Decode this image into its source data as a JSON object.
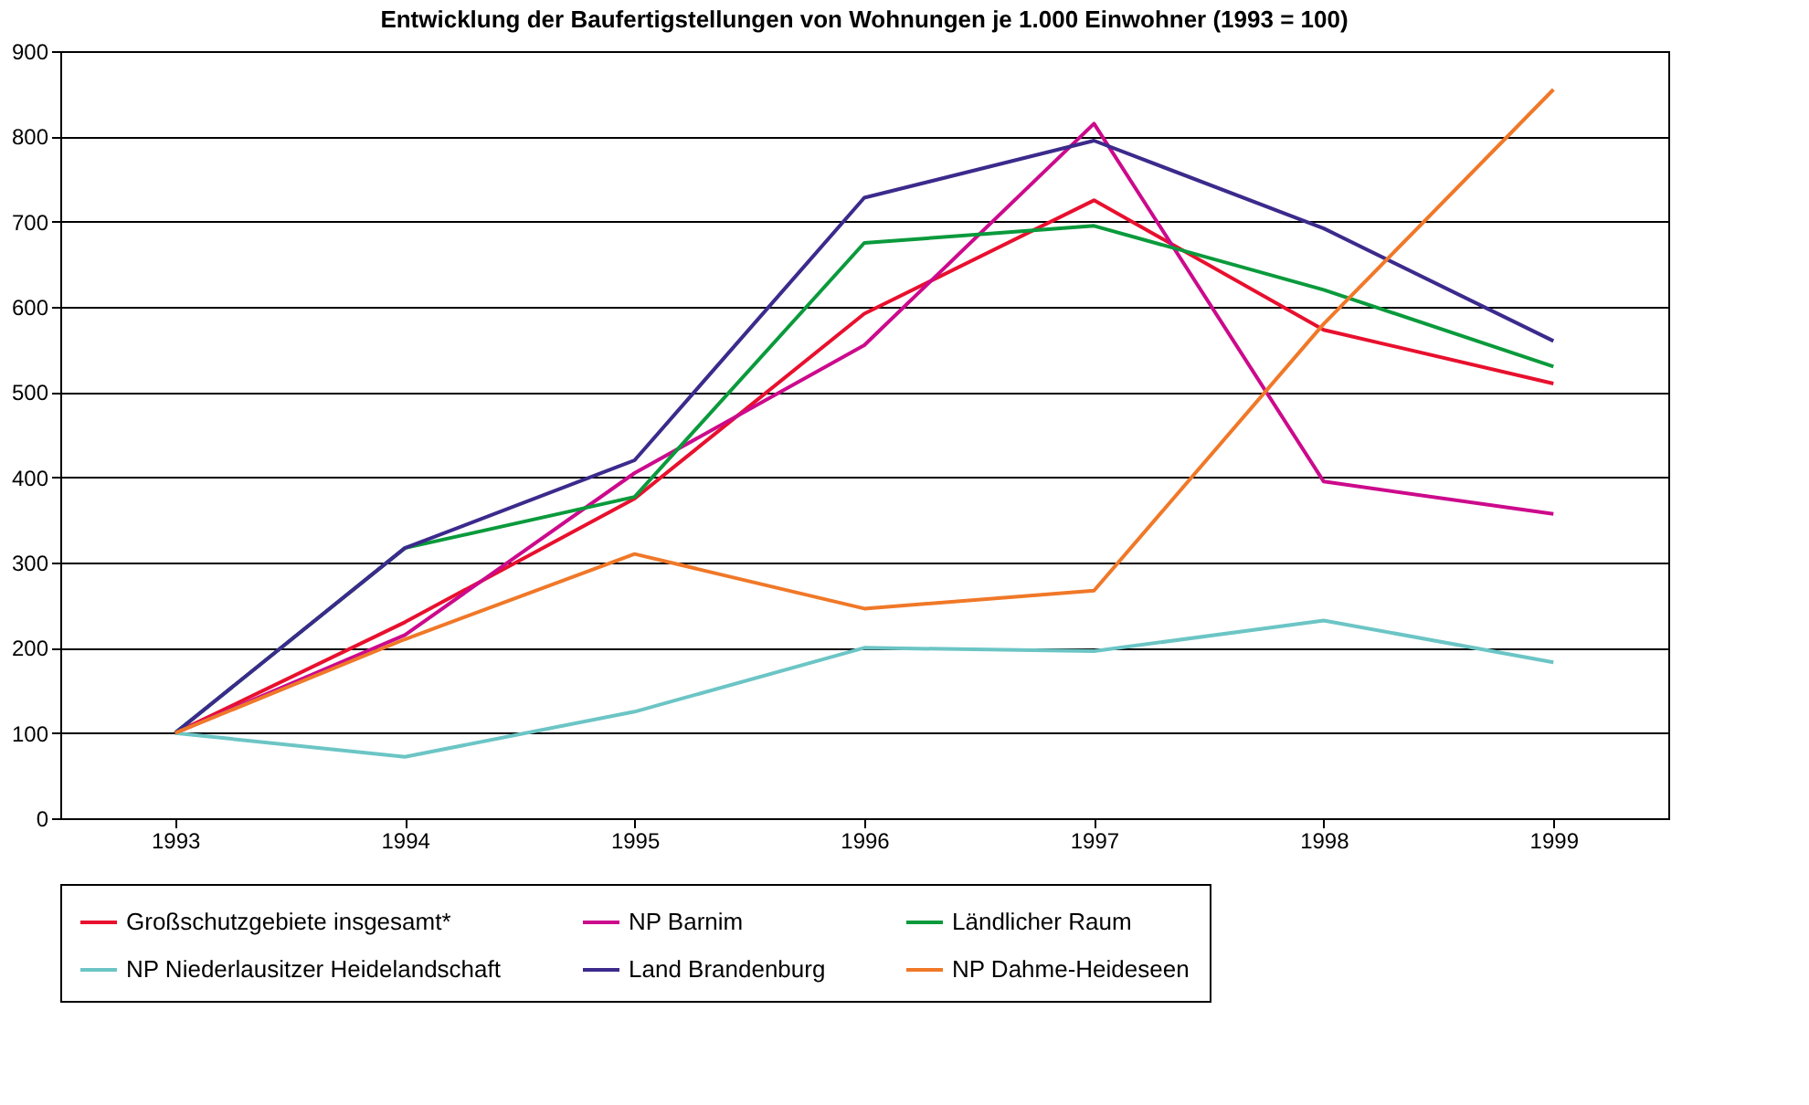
{
  "chart_data": {
    "type": "line",
    "title": "Entwicklung der Baufertigstellungen von Wohnungen je 1.000 Einwohner (1993 = 100)",
    "categories": [
      "1993",
      "1994",
      "1995",
      "1996",
      "1997",
      "1998",
      "1999"
    ],
    "series": [
      {
        "name": "Großschutzgebiete insgesamt*",
        "color": "#e8102e",
        "values": [
          100,
          230,
          375,
          592,
          725,
          573,
          510
        ]
      },
      {
        "name": "NP Barnim",
        "color": "#cc0a8c",
        "values": [
          100,
          215,
          405,
          555,
          815,
          395,
          357
        ]
      },
      {
        "name": "Ländlicher Raum",
        "color": "#0a9a3c",
        "values": [
          100,
          317,
          377,
          675,
          695,
          620,
          530
        ]
      },
      {
        "name": "NP Niederlausitzer Heidelandschaft",
        "color": "#6cc5c5",
        "values": [
          100,
          72,
          125,
          200,
          196,
          232,
          183
        ]
      },
      {
        "name": "Land Brandenburg",
        "color": "#3c2a8c",
        "values": [
          100,
          317,
          420,
          728,
          795,
          692,
          560
        ]
      },
      {
        "name": "NP Dahme-Heideseen",
        "color": "#f07828",
        "values": [
          100,
          210,
          310,
          246,
          267,
          580,
          855
        ]
      }
    ],
    "ylim": [
      0,
      900
    ],
    "yticks": [
      0,
      100,
      200,
      300,
      400,
      500,
      600,
      700,
      800,
      900
    ],
    "grid": "y",
    "legend": "bottom",
    "marker": "none",
    "line_style": "solid"
  }
}
